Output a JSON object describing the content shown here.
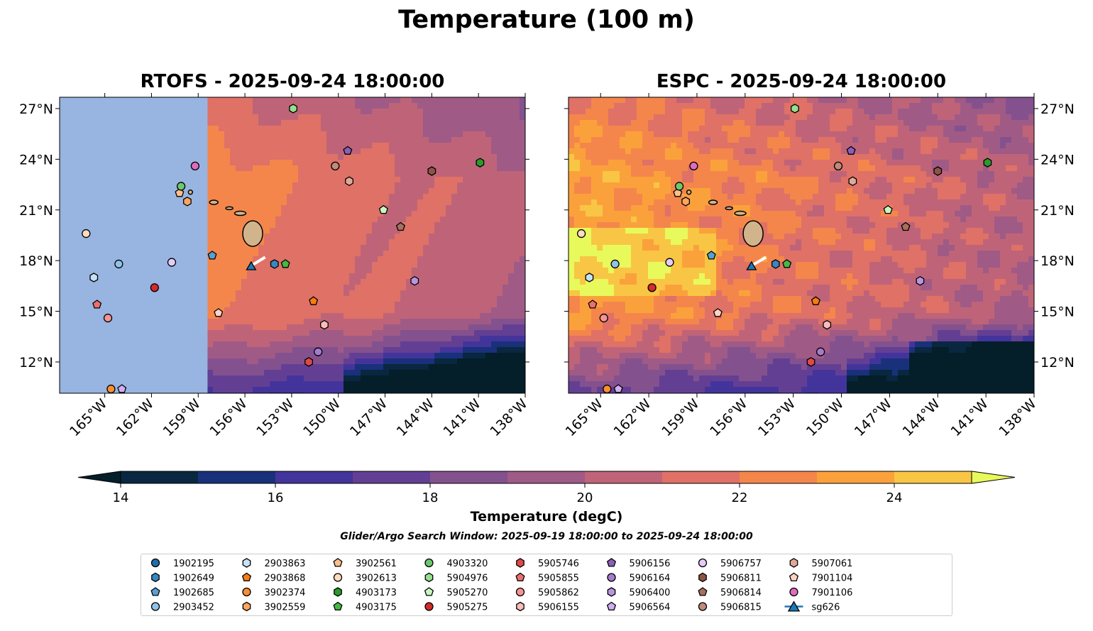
{
  "title": "Temperature (100 m)",
  "panels": [
    {
      "title": "RTOFS - 2025-09-24 18:00:00",
      "lon_range": [
        -167.9,
        -138
      ],
      "lat_range": [
        10.15,
        27.67
      ],
      "land_mask_east_lon": -158.4,
      "style": "rtofs"
    },
    {
      "title": "ESPC - 2025-09-24 18:00:00",
      "lon_range": [
        -167.0,
        -138
      ],
      "lat_range": [
        10.15,
        27.67
      ],
      "style": "espc"
    }
  ],
  "lon_ticks": [
    {
      "v": -165,
      "label": "165°W"
    },
    {
      "v": -162,
      "label": "162°W"
    },
    {
      "v": -159,
      "label": "159°W"
    },
    {
      "v": -156,
      "label": "156°W"
    },
    {
      "v": -153,
      "label": "153°W"
    },
    {
      "v": -150,
      "label": "150°W"
    },
    {
      "v": -147,
      "label": "147°W"
    },
    {
      "v": -144,
      "label": "144°W"
    },
    {
      "v": -141,
      "label": "141°W"
    },
    {
      "v": -138,
      "label": "138°W"
    }
  ],
  "lat_ticks": [
    {
      "v": 12,
      "label": "12°N"
    },
    {
      "v": 15,
      "label": "15°N"
    },
    {
      "v": 18,
      "label": "18°N"
    },
    {
      "v": 21,
      "label": "21°N"
    },
    {
      "v": 24,
      "label": "24°N"
    },
    {
      "v": 27,
      "label": "27°N"
    }
  ],
  "colorbar": {
    "label": "Temperature (degC)",
    "levels": [
      14,
      15,
      16,
      17,
      18,
      19,
      20,
      21,
      22,
      23,
      24,
      25
    ],
    "tick_labels": [
      {
        "v": 14,
        "label": "14"
      },
      {
        "v": 16,
        "label": "16"
      },
      {
        "v": 18,
        "label": "18"
      },
      {
        "v": 20,
        "label": "20"
      },
      {
        "v": 22,
        "label": "22"
      },
      {
        "v": 24,
        "label": "24"
      }
    ],
    "colors": [
      "#092740",
      "#19317a",
      "#43349c",
      "#633f94",
      "#83518e",
      "#a05a86",
      "#bf6478",
      "#df7166",
      "#f4864b",
      "#fba13c",
      "#f8c644"
    ],
    "under_color": "#041e2a",
    "over_color": "#e8f95c"
  },
  "search_window": "Glider/Argo Search Window: 2025-09-19 18:00:00 to 2025-09-24 18:00:00",
  "floats": [
    {
      "id": "1902195",
      "shape": "circle",
      "color": "#1f6fae"
    },
    {
      "id": "1902649",
      "shape": "hexagon",
      "color": "#3a86c2",
      "lon": -154.1,
      "lat": 17.8
    },
    {
      "id": "1902685",
      "shape": "pentagon",
      "color": "#5a9fd4",
      "lon": -158.1,
      "lat": 18.3
    },
    {
      "id": "2903452",
      "shape": "circle",
      "color": "#8fc3ea",
      "lon": -164.1,
      "lat": 17.8
    },
    {
      "id": "2903863",
      "shape": "hexagon",
      "color": "#c6e2f7",
      "lon": -165.7,
      "lat": 17.0
    },
    {
      "id": "2903868",
      "shape": "pentagon",
      "color": "#f57d12",
      "lon": -151.6,
      "lat": 15.6
    },
    {
      "id": "3902374",
      "shape": "circle",
      "color": "#fb8d34",
      "lon": -164.6,
      "lat": 10.4
    },
    {
      "id": "3902559",
      "shape": "hexagon",
      "color": "#fca55e",
      "lon": -159.7,
      "lat": 21.5
    },
    {
      "id": "3902561",
      "shape": "pentagon",
      "color": "#fdbf8a",
      "lon": -160.2,
      "lat": 22.0
    },
    {
      "id": "3902613",
      "shape": "circle",
      "color": "#fddcbf",
      "lon": -166.2,
      "lat": 19.6
    },
    {
      "id": "4903173",
      "shape": "hexagon",
      "color": "#2a9a2a",
      "lon": -140.9,
      "lat": 23.8
    },
    {
      "id": "4903175",
      "shape": "pentagon",
      "color": "#45b845",
      "lon": -153.4,
      "lat": 17.8
    },
    {
      "id": "4903320",
      "shape": "circle",
      "color": "#6cc86c",
      "lon": -160.1,
      "lat": 22.4
    },
    {
      "id": "5904976",
      "shape": "hexagon",
      "color": "#96df8e",
      "lon": -152.9,
      "lat": 27.0
    },
    {
      "id": "5905270",
      "shape": "pentagon",
      "color": "#c8f7c0",
      "lon": -147.1,
      "lat": 21.0
    },
    {
      "id": "5905275",
      "shape": "circle",
      "color": "#d42a2a",
      "lon": -161.8,
      "lat": 16.4
    },
    {
      "id": "5905746",
      "shape": "hexagon",
      "color": "#e04848",
      "lon": -151.9,
      "lat": 12.0
    },
    {
      "id": "5905855",
      "shape": "pentagon",
      "color": "#ec6f6f",
      "lon": -165.5,
      "lat": 15.4
    },
    {
      "id": "5905862",
      "shape": "circle",
      "color": "#f59494",
      "lon": -164.8,
      "lat": 14.6
    },
    {
      "id": "5906155",
      "shape": "hexagon",
      "color": "#fbbcbc",
      "lon": -150.9,
      "lat": 14.2
    },
    {
      "id": "5906156",
      "shape": "pentagon",
      "color": "#8b5fb5",
      "lon": -149.4,
      "lat": 24.5
    },
    {
      "id": "5906164",
      "shape": "circle",
      "color": "#a47cce",
      "lon": -151.3,
      "lat": 12.6
    },
    {
      "id": "5906400",
      "shape": "hexagon",
      "color": "#b896de",
      "lon": -145.1,
      "lat": 16.8
    },
    {
      "id": "5906564",
      "shape": "pentagon",
      "color": "#cfaef0",
      "lon": -163.9,
      "lat": 10.4
    },
    {
      "id": "5906757",
      "shape": "circle",
      "color": "#e3ccf8",
      "lon": -160.7,
      "lat": 17.9
    },
    {
      "id": "5906811",
      "shape": "hexagon",
      "color": "#8c5444",
      "lon": -144.0,
      "lat": 23.3
    },
    {
      "id": "5906814",
      "shape": "pentagon",
      "color": "#a8705e",
      "lon": -146.0,
      "lat": 20.0
    },
    {
      "id": "5906815",
      "shape": "circle",
      "color": "#c08a7c",
      "lon": -150.2,
      "lat": 23.6
    },
    {
      "id": "5907061",
      "shape": "hexagon",
      "color": "#dfa898",
      "lon": -149.3,
      "lat": 22.7
    },
    {
      "id": "7901104",
      "shape": "pentagon",
      "color": "#fcd2c4",
      "lon": -157.7,
      "lat": 14.9
    },
    {
      "id": "7901106",
      "shape": "circle",
      "color": "#df6cbf",
      "lon": -159.2,
      "lat": 23.6
    },
    {
      "id": "sg626",
      "shape": "triangle",
      "color": "#1f77b4",
      "lon": -155.6,
      "lat": 17.7,
      "track": [
        [
          -155.6,
          17.7
        ],
        [
          -154.7,
          18.2
        ]
      ]
    }
  ]
}
